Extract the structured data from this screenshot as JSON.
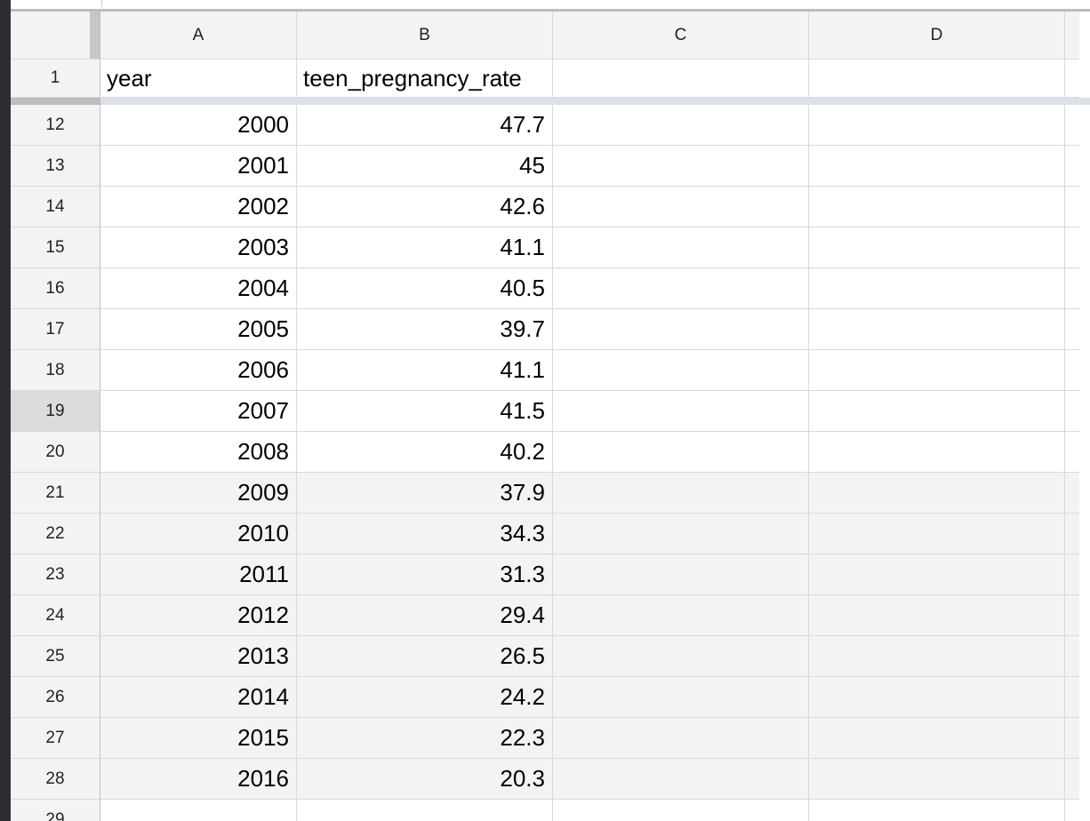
{
  "columns": [
    "A",
    "B",
    "C",
    "D"
  ],
  "header_row": {
    "row_number": "1",
    "year_label": "year",
    "rate_label": "teen_pregnancy_rate"
  },
  "rows": [
    {
      "row_number": "12",
      "year": "2000",
      "rate": "47.7"
    },
    {
      "row_number": "13",
      "year": "2001",
      "rate": "45"
    },
    {
      "row_number": "14",
      "year": "2002",
      "rate": "42.6"
    },
    {
      "row_number": "15",
      "year": "2003",
      "rate": "41.1"
    },
    {
      "row_number": "16",
      "year": "2004",
      "rate": "40.5"
    },
    {
      "row_number": "17",
      "year": "2005",
      "rate": "39.7"
    },
    {
      "row_number": "18",
      "year": "2006",
      "rate": "41.1"
    },
    {
      "row_number": "19",
      "year": "2007",
      "rate": "41.5"
    },
    {
      "row_number": "20",
      "year": "2008",
      "rate": "40.2"
    },
    {
      "row_number": "21",
      "year": "2009",
      "rate": "37.9"
    },
    {
      "row_number": "22",
      "year": "2010",
      "rate": "34.3"
    },
    {
      "row_number": "23",
      "year": "2011",
      "rate": "31.3"
    },
    {
      "row_number": "24",
      "year": "2012",
      "rate": "29.4"
    },
    {
      "row_number": "25",
      "year": "2013",
      "rate": "26.5"
    },
    {
      "row_number": "26",
      "year": "2014",
      "rate": "24.2"
    },
    {
      "row_number": "27",
      "year": "2015",
      "rate": "22.3"
    },
    {
      "row_number": "28",
      "year": "2016",
      "rate": "20.3"
    },
    {
      "row_number": "29",
      "year": "",
      "rate": ""
    }
  ],
  "selected_row_number": "19",
  "shaded_from_row_number": "21",
  "colors": {
    "header_bg": "#f3f3f3",
    "selected_header_bg": "#dcdcdc",
    "frozen_divider": "#dbe1e8",
    "shaded_row_bg": "#f3f3f3",
    "gridline": "#d9d9d9"
  }
}
